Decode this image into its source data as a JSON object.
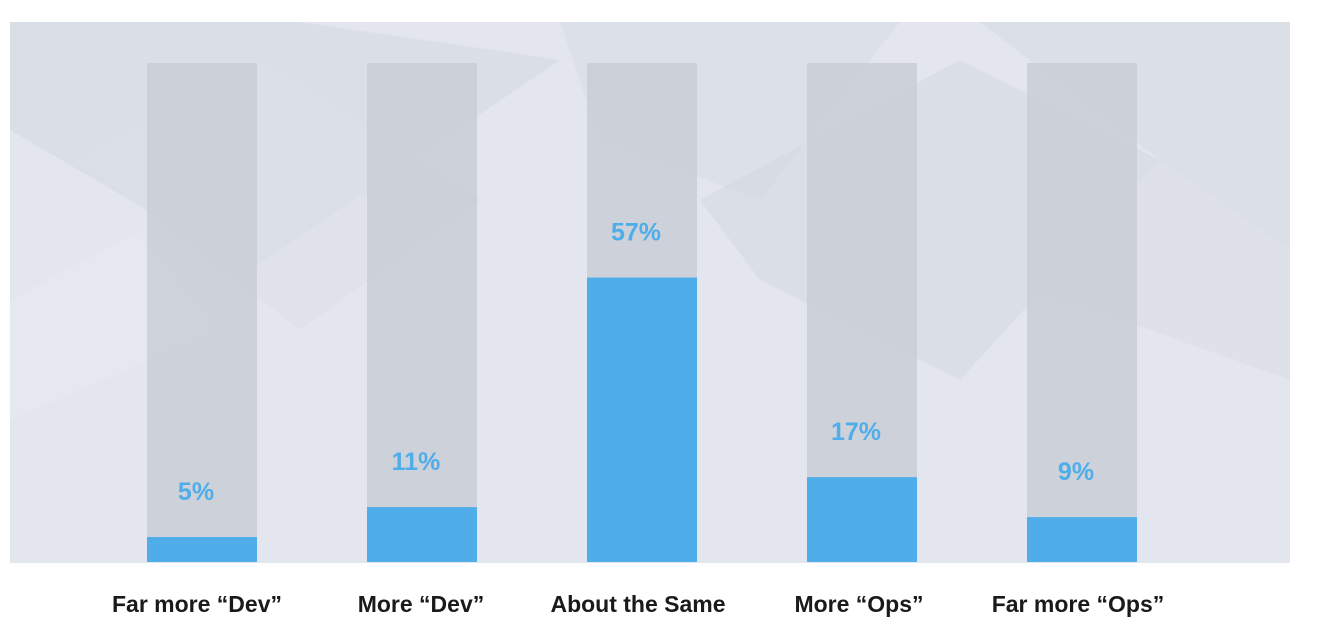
{
  "chart_data": {
    "type": "bar",
    "title": "",
    "xlabel": "",
    "ylabel": "",
    "categories": [
      "Far more “Dev”",
      "More “Dev”",
      "About the Same",
      "More “Ops”",
      "Far more “Ops”"
    ],
    "values": [
      5,
      11,
      57,
      17,
      9
    ],
    "value_labels": [
      "5%",
      "11%",
      "57%",
      "17%",
      "9%"
    ],
    "ylim": [
      0,
      100
    ],
    "grid": false,
    "legend": "none",
    "colors": {
      "bar": "#4fadea",
      "track": "#c9ced6",
      "value_text": "#4fadea",
      "background": "#e3e6ee",
      "category_text": "#1a1a1a"
    }
  }
}
